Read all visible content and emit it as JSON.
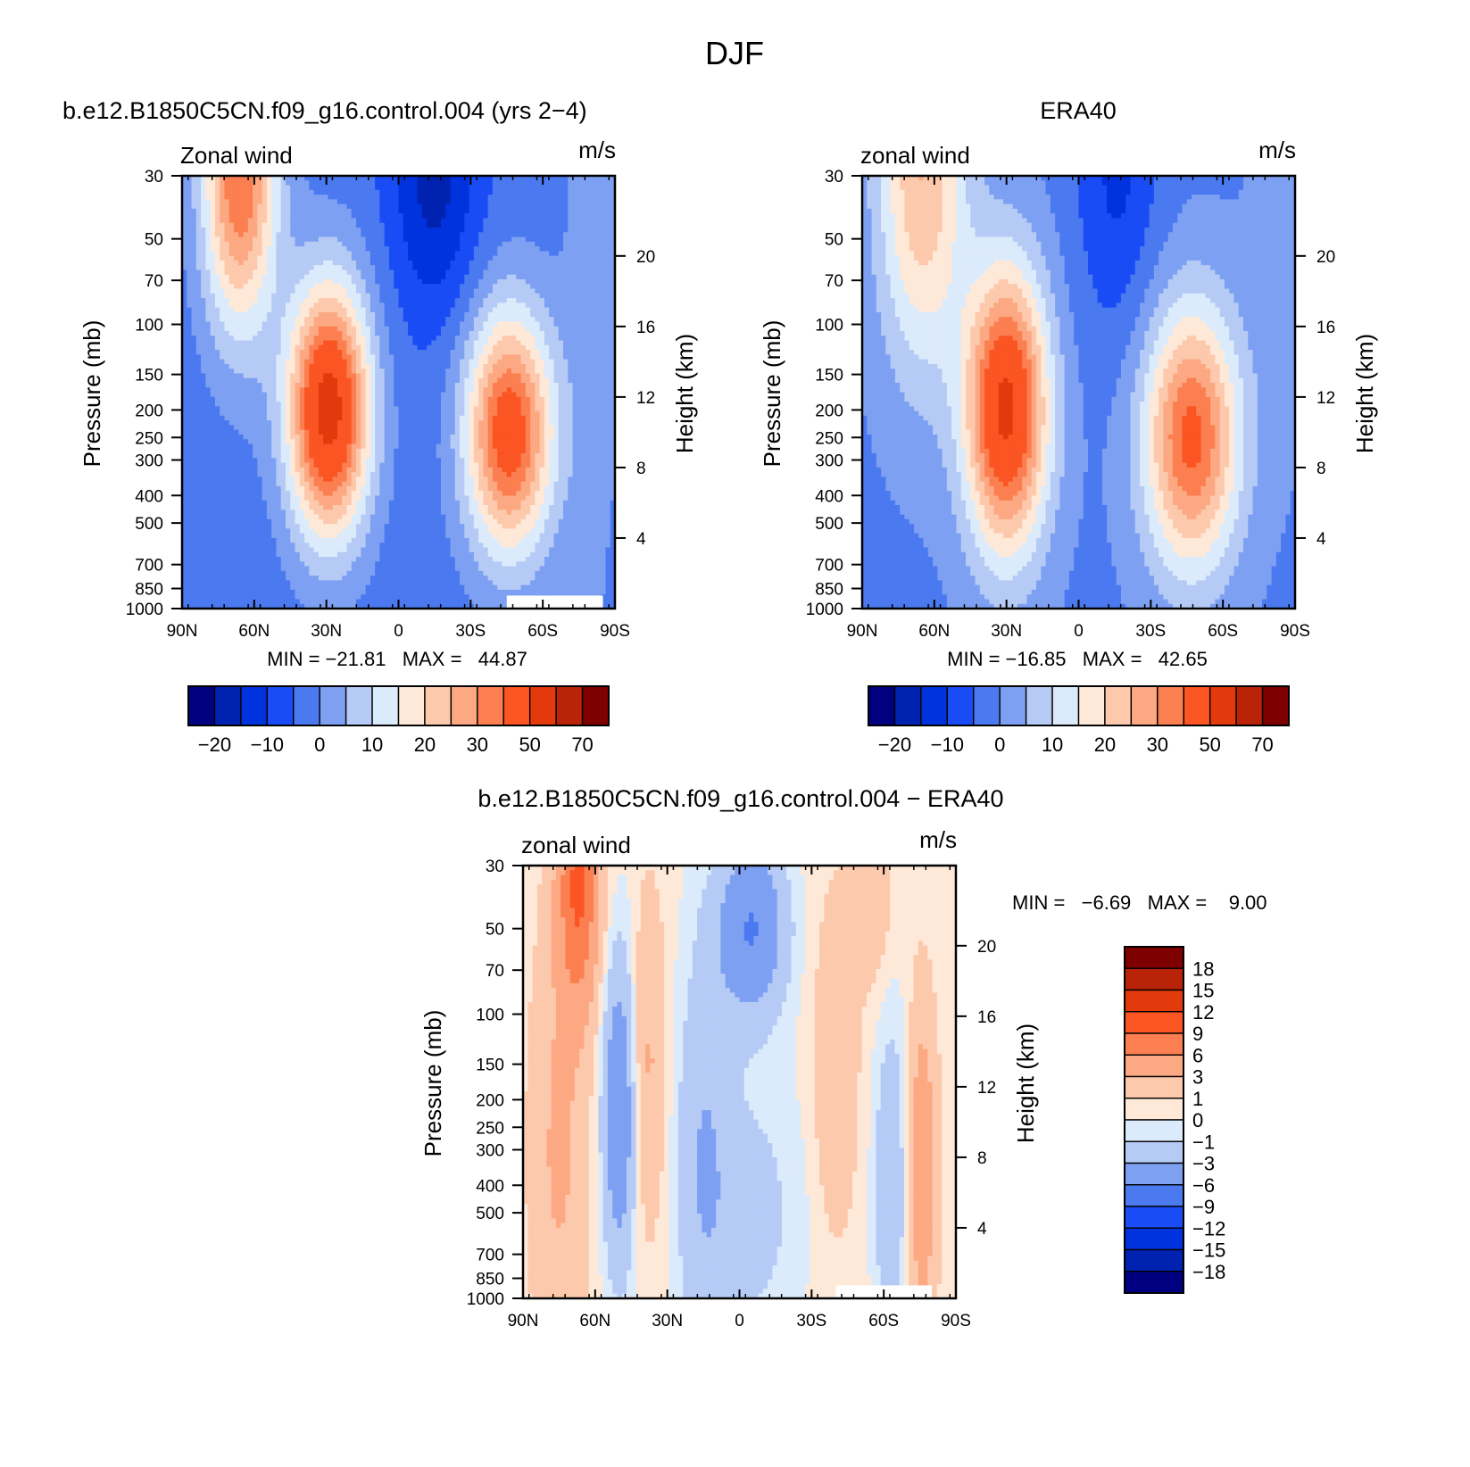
{
  "figure": {
    "title": "DJF"
  },
  "colors": {
    "cool": [
      "#000080",
      "#0022b0",
      "#0033dd",
      "#1a4cf5",
      "#4a79f0",
      "#7ea0f2",
      "#b5cbf6",
      "#dcebfb"
    ],
    "warm": [
      "#fee9d8",
      "#fdc9ad",
      "#fca983",
      "#fb7f50",
      "#fa5522",
      "#e23a0c",
      "#b92408",
      "#7f0000"
    ]
  },
  "panels": [
    {
      "title": "b.e12.B1850C5CN.f09_g16.control.004 (yrs 2−4)",
      "left_label": "Zonal wind",
      "right_label": "m/s",
      "ylabel": "Pressure (mb)",
      "y2label": "Height (km)",
      "min_max": "MIN = −21.81   MAX =   44.87",
      "colorbar_labels": [
        "−20",
        "−10",
        "0",
        "10",
        "20",
        "30",
        "50",
        "70"
      ]
    },
    {
      "title": "ERA40",
      "left_label": "zonal wind",
      "right_label": "m/s",
      "ylabel": "Pressure (mb)",
      "y2label": "Height (km)",
      "min_max": "MIN = −16.85   MAX =   42.65",
      "colorbar_labels": [
        "−20",
        "−10",
        "0",
        "10",
        "20",
        "30",
        "50",
        "70"
      ]
    },
    {
      "title": "b.e12.B1850C5CN.f09_g16.control.004 − ERA40",
      "left_label": "zonal wind",
      "right_label": "m/s",
      "ylabel": "Pressure (mb)",
      "y2label": "Height (km)",
      "min_max": "MIN =   −6.69   MAX =    9.00",
      "colorbar_labels": [
        "18",
        "15",
        "12",
        "9",
        "6",
        "3",
        "1",
        "0",
        "−1",
        "−3",
        "−6",
        "−9",
        "−12",
        "−15",
        "−18"
      ]
    }
  ],
  "chart_data": [
    {
      "type": "heatmap",
      "title": "b.e12.B1850C5CN.f09_g16.control.004 (yrs 2−4)",
      "ylabel": "Pressure (mb)",
      "y2label": "Height (km)",
      "x_ticks": [
        "90N",
        "60N",
        "30N",
        "0",
        "30S",
        "60S",
        "90S"
      ],
      "y_ticks": [
        30,
        50,
        70,
        100,
        150,
        200,
        250,
        300,
        400,
        500,
        700,
        850,
        1000
      ],
      "y2_ticks": [
        4,
        8,
        12,
        16,
        20
      ],
      "ylim": [
        1000,
        30
      ],
      "y_scale": "log",
      "units": "m/s",
      "min": -21.81,
      "max": 44.87,
      "features": [
        {
          "kind": "westerly_jet_core",
          "lat": 29,
          "p": 200,
          "value": 44
        },
        {
          "kind": "westerly_jet_core",
          "lat": -46,
          "p": 240,
          "value": 35
        },
        {
          "kind": "stratospheric_jet",
          "lat": 66,
          "p": 30,
          "value": 30
        },
        {
          "kind": "easterly_core",
          "lat": -15,
          "p": 30,
          "value": -21
        }
      ]
    },
    {
      "type": "heatmap",
      "title": "ERA40",
      "ylabel": "Pressure (mb)",
      "y2label": "Height (km)",
      "x_ticks": [
        "90N",
        "60N",
        "30N",
        "0",
        "30S",
        "60S",
        "90S"
      ],
      "y_ticks": [
        30,
        50,
        70,
        100,
        150,
        200,
        250,
        300,
        400,
        500,
        700,
        850,
        1000
      ],
      "y2_ticks": [
        4,
        8,
        12,
        16,
        20
      ],
      "ylim": [
        1000,
        30
      ],
      "y_scale": "log",
      "units": "m/s",
      "min": -16.85,
      "max": 42.65,
      "features": [
        {
          "kind": "westerly_jet_core",
          "lat": 30,
          "p": 200,
          "value": 42
        },
        {
          "kind": "westerly_jet_core",
          "lat": -47,
          "p": 250,
          "value": 32
        },
        {
          "kind": "stratospheric_jet",
          "lat": 65,
          "p": 30,
          "value": 20
        },
        {
          "kind": "easterly_core",
          "lat": -16,
          "p": 30,
          "value": -16
        }
      ]
    },
    {
      "type": "heatmap",
      "title": "b.e12.B1850C5CN.f09_g16.control.004 − ERA40",
      "ylabel": "Pressure (mb)",
      "y2label": "Height (km)",
      "x_ticks": [
        "90N",
        "60N",
        "30N",
        "0",
        "30S",
        "60S",
        "90S"
      ],
      "y_ticks": [
        30,
        50,
        70,
        100,
        150,
        200,
        250,
        300,
        400,
        500,
        700,
        850,
        1000
      ],
      "y2_ticks": [
        4,
        8,
        12,
        16,
        20
      ],
      "ylim": [
        1000,
        30
      ],
      "y_scale": "log",
      "units": "m/s",
      "min": -6.69,
      "max": 9.0,
      "features": [
        {
          "kind": "positive_bias",
          "lat": 67,
          "p": 35,
          "value": 9
        },
        {
          "kind": "positive_bias",
          "lat": 40,
          "p": 150,
          "value": 3
        },
        {
          "kind": "negative_bias",
          "lat": 50,
          "p": 200,
          "value": -6
        },
        {
          "kind": "negative_bias",
          "lat": -5,
          "p": 50,
          "value": -6
        },
        {
          "kind": "positive_bias",
          "lat": -75,
          "p": 350,
          "value": 5
        }
      ]
    }
  ]
}
